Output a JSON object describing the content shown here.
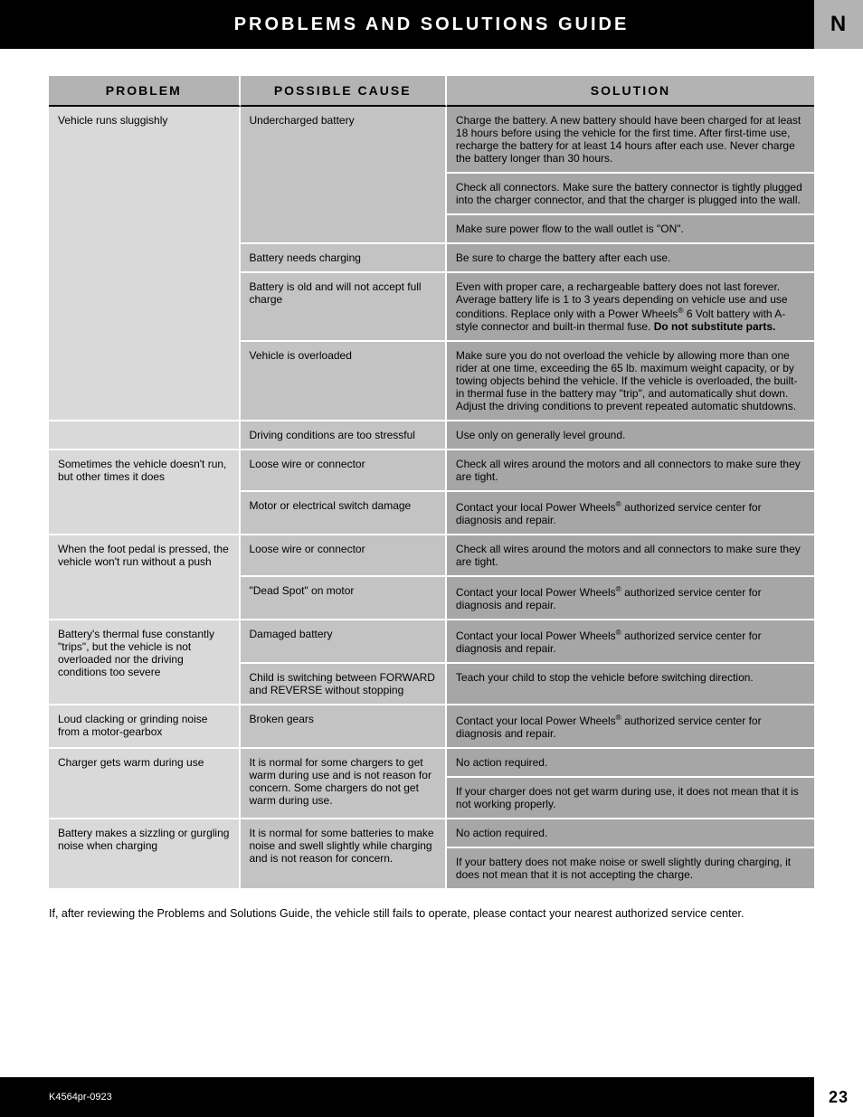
{
  "header": {
    "title": "PROBLEMS AND SOLUTIONS GUIDE",
    "section_letter": "N"
  },
  "table": {
    "headers": {
      "problem": "PROBLEM",
      "cause": "POSSIBLE CAUSE",
      "solution": "SOLUTION"
    },
    "colors": {
      "header_bg": "#b3b3b3",
      "problem_bg": "#d9d9d9",
      "cause_bg": "#c3c3c3",
      "solution_bg": "#a6a6a6",
      "border": "#ffffff",
      "header_underline": "#000000"
    },
    "rows": [
      {
        "problem": "Vehicle runs sluggishly",
        "problem_rowspan": 6,
        "cause": "Undercharged battery",
        "cause_rowspan": 3,
        "solution": "Charge the battery. A new battery should have been charged for at least 18 hours before using the vehicle for the first time. After first-time use, recharge the battery for at least 14 hours after each use. Never charge the battery longer than 30 hours."
      },
      {
        "solution": "Check all connectors. Make sure the battery connector is tightly plugged into the charger connector, and that the charger is plugged into the wall."
      },
      {
        "solution": "Make sure power flow to the wall outlet is \"ON\"."
      },
      {
        "cause": "Battery needs charging",
        "cause_rowspan": 1,
        "solution": "Be sure to charge the battery after each use."
      },
      {
        "cause": "Battery is old and will not accept full charge",
        "cause_rowspan": 1,
        "solution_html": "Even with proper care, a rechargeable battery does not last forever. Average battery life is 1 to 3 years depending on vehicle use and use conditions. Replace only with a Power Wheels<sup>®</sup> 6 Volt battery with A-style connector and built-in thermal fuse. <strong>Do not substitute parts.</strong>"
      },
      {
        "cause": "Vehicle is overloaded",
        "cause_rowspan": 1,
        "solution": "Make sure you do not overload the vehicle by allowing more than one rider at one time, exceeding the 65 lb. maximum weight capacity, or by towing objects behind the vehicle. If the vehicle is overloaded, the built-in thermal fuse in the battery may \"trip\", and automatically shut down. Adjust the driving conditions to prevent repeated automatic shutdowns."
      },
      {
        "problem": "",
        "problem_rowspan": 1,
        "cause": "Driving conditions are too stressful",
        "cause_rowspan": 1,
        "solution": "Use only on generally level ground."
      },
      {
        "problem": "Sometimes the vehicle doesn't run, but other times it does",
        "problem_rowspan": 2,
        "cause": "Loose wire or connector",
        "cause_rowspan": 1,
        "solution": "Check all wires around the motors and all connectors to make sure they are tight."
      },
      {
        "cause": "Motor or electrical switch damage",
        "cause_rowspan": 1,
        "solution_html": "Contact your local Power Wheels<sup>®</sup> authorized service center for diagnosis and repair."
      },
      {
        "problem": "When the foot pedal is pressed, the vehicle won't run without a push",
        "problem_rowspan": 2,
        "cause": "Loose wire or connector",
        "cause_rowspan": 1,
        "solution": "Check all wires around the motors and all connectors to make sure they are tight."
      },
      {
        "cause": "\"Dead Spot\" on motor",
        "cause_rowspan": 1,
        "solution_html": "Contact your local Power Wheels<sup>®</sup> authorized service center for diagnosis and repair."
      },
      {
        "problem": "Battery's thermal fuse constantly \"trips\", but the vehicle is not overloaded nor the driving conditions too severe",
        "problem_rowspan": 2,
        "cause": "Damaged battery",
        "cause_rowspan": 1,
        "solution_html": "Contact your local Power Wheels<sup>®</sup> authorized service center for diagnosis and repair."
      },
      {
        "cause": "Child is switching between FORWARD and REVERSE without stopping",
        "cause_rowspan": 1,
        "solution": "Teach your child to stop the vehicle before switching direction."
      },
      {
        "problem": "Loud clacking or grinding noise from a motor-gearbox",
        "problem_rowspan": 1,
        "cause": "Broken gears",
        "cause_rowspan": 1,
        "solution_html": "Contact your local Power Wheels<sup>®</sup> authorized service center for diagnosis and repair."
      },
      {
        "problem": "Charger gets warm during use",
        "problem_rowspan": 2,
        "cause": "It is normal for some chargers to get warm during use and is not reason for concern. Some chargers do not get warm during use.",
        "cause_rowspan": 2,
        "solution": "No action required."
      },
      {
        "solution": "If your charger does not get warm during use, it does not mean that it is not working properly."
      },
      {
        "problem": "Battery makes a sizzling or gurgling noise when charging",
        "problem_rowspan": 2,
        "cause": "It is normal for some batteries to make noise and swell slightly while charging and is not reason for concern.",
        "cause_rowspan": 2,
        "solution": "No action required."
      },
      {
        "solution": "If your battery does not make noise or swell slightly during charging, it does not mean that it is not accepting the charge."
      }
    ]
  },
  "footer_note": "If, after reviewing the Problems and Solutions Guide, the vehicle still fails to operate, please contact your nearest authorized service center.",
  "footer": {
    "doc_id": "K4564pr-0923",
    "page_number": "23"
  }
}
